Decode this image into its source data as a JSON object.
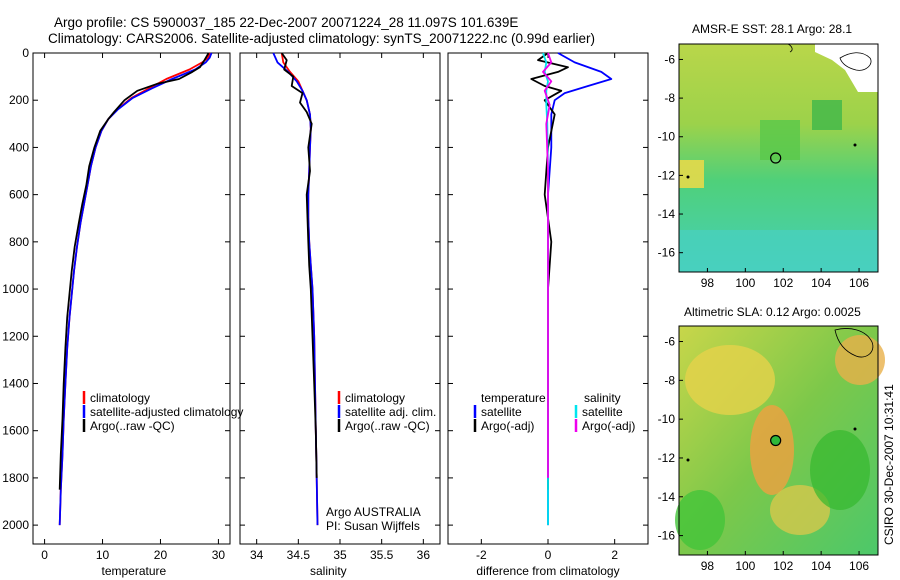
{
  "title": {
    "line1": "Argo profile: CS 5900037_185 22-Dec-2007 20071224_28 11.097S 101.639E",
    "line2": "Climatology: CARS2006. Satellite-adjusted climatology: synTS_20071222.nc (0.99d earlier)"
  },
  "side_label": "CSIRO 30-Dec-2007 10:31:41",
  "colors": {
    "red": "#ff0000",
    "blue": "#0000ff",
    "black": "#000000",
    "cyan": "#00e5ee",
    "magenta": "#ee00ee"
  },
  "chart_data": [
    {
      "id": "temperature",
      "type": "line",
      "xlabel": "temperature",
      "xlim": [
        -2,
        32
      ],
      "ylim": [
        0,
        2080
      ],
      "xticks": [
        "0",
        "10",
        "20",
        "30"
      ],
      "xtick_values": [
        0,
        10,
        20,
        30
      ],
      "yticks": [
        "0",
        "200",
        "400",
        "600",
        "800",
        "1000",
        "1200",
        "1400",
        "1600",
        "1800",
        "2000"
      ],
      "ytick_values": [
        0,
        200,
        400,
        600,
        800,
        1000,
        1200,
        1400,
        1600,
        1800,
        2000
      ],
      "legend": [
        "climatology",
        "satellite-adjusted climatology",
        "Argo(..raw -QC)"
      ],
      "series": [
        {
          "name": "climatology",
          "color": "red",
          "x": [
            28.5,
            28.2,
            27.2,
            25.0,
            21.0,
            18.0,
            15.0,
            12.5,
            11.0,
            9.8,
            8.8,
            8.0,
            7.4,
            6.8,
            6.2,
            5.6,
            5.1,
            4.7,
            4.3,
            3.9,
            3.6,
            3.3,
            3.1,
            2.8,
            2.6
          ],
          "y": [
            0,
            20,
            40,
            70,
            110,
            150,
            190,
            240,
            280,
            330,
            400,
            480,
            560,
            640,
            720,
            820,
            920,
            1020,
            1120,
            1250,
            1400,
            1550,
            1700,
            1850,
            2000
          ]
        },
        {
          "name": "satellite-adjusted climatology",
          "color": "blue",
          "x": [
            28.8,
            28.5,
            27.8,
            26.0,
            22.0,
            18.5,
            15.2,
            12.6,
            11.0,
            9.8,
            8.8,
            8.0,
            7.4,
            6.8,
            6.2,
            5.6,
            5.1,
            4.7,
            4.3,
            3.9,
            3.6,
            3.3,
            3.1,
            2.8,
            2.6
          ],
          "y": [
            0,
            20,
            40,
            70,
            110,
            150,
            190,
            240,
            280,
            330,
            400,
            480,
            560,
            640,
            720,
            820,
            920,
            1020,
            1120,
            1250,
            1400,
            1550,
            1700,
            1850,
            2000
          ]
        },
        {
          "name": "Argo(..raw -QC)",
          "color": "black",
          "x": [
            28.3,
            27.6,
            26.8,
            25.5,
            23.2,
            19.5,
            16.0,
            13.8,
            12.0,
            11.0,
            9.6,
            8.6,
            7.7,
            7.2,
            6.5,
            5.9,
            5.2,
            4.7,
            4.3,
            3.9,
            3.6,
            3.3,
            3.1,
            2.8,
            2.6
          ],
          "y": [
            0,
            30,
            60,
            80,
            110,
            130,
            160,
            200,
            250,
            280,
            330,
            400,
            480,
            560,
            640,
            720,
            820,
            920,
            1020,
            1120,
            1250,
            1400,
            1550,
            1700,
            1850
          ]
        }
      ]
    },
    {
      "id": "salinity",
      "type": "line",
      "xlabel": "salinity",
      "xlim": [
        33.8,
        36.2
      ],
      "ylim": [
        0,
        2080
      ],
      "xticks": [
        "34",
        "34.5",
        "35",
        "35.5",
        "36"
      ],
      "xtick_values": [
        34,
        34.5,
        35,
        35.5,
        36
      ],
      "legend": [
        "climatology",
        "satellite adj. clim.",
        "Argo(..raw -QC)"
      ],
      "annotation": [
        "Argo AUSTRALIA",
        "PI: Susan Wijffels"
      ],
      "series": [
        {
          "name": "climatology",
          "color": "red",
          "x": [
            34.3,
            34.32,
            34.4,
            34.5,
            34.55,
            34.6,
            34.64,
            34.65,
            34.64,
            34.63,
            34.62,
            34.62,
            34.63,
            34.65,
            34.67,
            34.69,
            34.7,
            34.71,
            34.72,
            34.73
          ],
          "y": [
            0,
            40,
            80,
            120,
            160,
            200,
            260,
            320,
            400,
            500,
            600,
            700,
            800,
            900,
            1000,
            1200,
            1400,
            1600,
            1800,
            2000
          ]
        },
        {
          "name": "satellite adj. clim.",
          "color": "blue",
          "x": [
            34.2,
            34.25,
            34.38,
            34.48,
            34.55,
            34.6,
            34.64,
            34.65,
            34.64,
            34.63,
            34.62,
            34.62,
            34.63,
            34.65,
            34.67,
            34.69,
            34.7,
            34.71,
            34.72,
            34.73
          ],
          "y": [
            0,
            40,
            80,
            120,
            160,
            200,
            260,
            320,
            400,
            500,
            600,
            700,
            800,
            900,
            1000,
            1200,
            1400,
            1600,
            1800,
            2000
          ]
        },
        {
          "name": "Argo(..raw -QC)",
          "color": "black",
          "x": [
            34.3,
            34.36,
            34.33,
            34.44,
            34.42,
            34.55,
            34.52,
            34.6,
            34.66,
            34.62,
            34.64,
            34.6,
            34.61,
            34.62,
            34.63,
            34.65,
            34.67,
            34.69,
            34.71,
            34.72
          ],
          "y": [
            0,
            30,
            70,
            100,
            140,
            170,
            210,
            250,
            300,
            400,
            500,
            600,
            700,
            800,
            900,
            1000,
            1200,
            1400,
            1600,
            1800
          ]
        }
      ]
    },
    {
      "id": "difference",
      "type": "line",
      "xlabel": "difference from climatology",
      "xlim": [
        -3,
        3
      ],
      "ylim": [
        0,
        2080
      ],
      "xticks": [
        "-2",
        "0",
        "2"
      ],
      "xtick_values": [
        -2,
        0,
        2
      ],
      "legend_headers": [
        "temperature",
        "salinity"
      ],
      "legend": [
        "satellite",
        "Argo(-adj)",
        "satellite",
        "Argo(-adj)"
      ],
      "series": [
        {
          "name": "temperature satellite",
          "color": "blue",
          "x": [
            0.3,
            0.8,
            1.6,
            1.9,
            1.2,
            0.5,
            0.2,
            0.1,
            0.1,
            0.0,
            0.0,
            0.0,
            0.0,
            0.0,
            0.0,
            0.0
          ],
          "y": [
            0,
            40,
            80,
            110,
            140,
            170,
            200,
            260,
            400,
            600,
            800,
            1000,
            1300,
            1600,
            1800,
            2000
          ]
        },
        {
          "name": "temperature Argo(-adj)",
          "color": "black",
          "x": [
            0.0,
            -0.3,
            0.6,
            0.3,
            -0.5,
            -0.1,
            0.4,
            -0.1,
            0.2,
            0.0,
            -0.1,
            0.1,
            0.0,
            0.0,
            0.0
          ],
          "y": [
            0,
            30,
            60,
            80,
            110,
            140,
            160,
            200,
            260,
            400,
            600,
            800,
            1000,
            1400,
            1850
          ]
        },
        {
          "name": "salinity satellite",
          "color": "cyan",
          "x": [
            -0.15,
            -0.05,
            -0.1,
            0.0,
            -0.05,
            -0.05,
            -0.02,
            0.0,
            0.0,
            0.0,
            0.0,
            0.0,
            0.0
          ],
          "y": [
            0,
            40,
            80,
            120,
            160,
            220,
            300,
            500,
            800,
            1100,
            1400,
            1700,
            2000
          ]
        },
        {
          "name": "salinity Argo(-adj)",
          "color": "magenta",
          "x": [
            0.0,
            0.1,
            -0.15,
            0.1,
            -0.1,
            0.05,
            -0.05,
            0.0,
            0.0,
            0.0,
            0.0
          ],
          "y": [
            0,
            40,
            80,
            120,
            160,
            220,
            300,
            500,
            800,
            1200,
            1800
          ]
        }
      ]
    },
    {
      "id": "sst_map",
      "type": "heatmap",
      "title": "AMSR-E SST: 28.1  Argo: 28.1",
      "xticks": [
        "98",
        "100",
        "102",
        "104",
        "106"
      ],
      "xtick_values": [
        98,
        100,
        102,
        104,
        106
      ],
      "yticks": [
        "-6",
        "-8",
        "-10",
        "-12",
        "-14",
        "-16"
      ],
      "ytick_values": [
        -6,
        -8,
        -10,
        -12,
        -14,
        -16
      ],
      "xlim": [
        96.5,
        107
      ],
      "ylim": [
        -17,
        -5.2
      ],
      "argo_position": [
        101.6,
        -11.1
      ]
    },
    {
      "id": "sla_map",
      "type": "heatmap",
      "title": "Altimetric SLA: 0.12  Argo: 0.0025",
      "xticks": [
        "98",
        "100",
        "102",
        "104",
        "106"
      ],
      "xtick_values": [
        98,
        100,
        102,
        104,
        106
      ],
      "yticks": [
        "-6",
        "-8",
        "-10",
        "-12",
        "-14",
        "-16"
      ],
      "ytick_values": [
        -6,
        -8,
        -10,
        -12,
        -14,
        -16
      ],
      "xlim": [
        96.5,
        107
      ],
      "ylim": [
        -17,
        -5.2
      ],
      "argo_position": [
        101.6,
        -11.1
      ]
    }
  ]
}
